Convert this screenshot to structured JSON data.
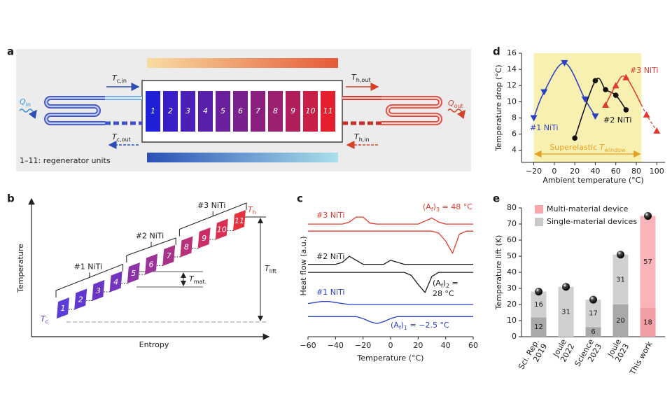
{
  "panel_a": {
    "label": "a",
    "units": [
      "1",
      "2",
      "3",
      "4",
      "5",
      "6",
      "7",
      "8",
      "9",
      "10",
      "11"
    ],
    "unit_colors": [
      "#2020d8",
      "#3a1fc8",
      "#4a1fb8",
      "#5a1faa",
      "#6a1f9c",
      "#7a1f8e",
      "#8a1f80",
      "#9c1f70",
      "#b01f5c",
      "#c81f46",
      "#e4202e"
    ],
    "q_in": [
      "Q",
      {
        "sub": "in"
      }
    ],
    "q_out": [
      "Q",
      {
        "sub": "out"
      }
    ],
    "t_c_in": [
      "T",
      {
        "sub": "c,in"
      }
    ],
    "t_c_out": [
      "T",
      {
        "sub": "c,out"
      }
    ],
    "t_h_out": [
      "T",
      {
        "sub": "h,out"
      }
    ],
    "t_h_in": [
      "T",
      {
        "sub": "h,in"
      }
    ],
    "note": "1–11: regenerator units"
  },
  "panel_b": {
    "label": "b",
    "ylabel": "Temperature",
    "xlabel": "Entropy",
    "groups": [
      "#1 NiTi",
      "#2 NiTi",
      "#3 NiTi"
    ],
    "units": [
      "1",
      "2",
      "3",
      "4",
      "5",
      "6",
      "7",
      "8",
      "9",
      "10",
      "11"
    ],
    "unit_colors": [
      "#5a3cd8",
      "#6138cf",
      "#6a35c6",
      "#7333bd",
      "#8a34a8",
      "#9b3398",
      "#a83289",
      "#b8307a",
      "#c92f66",
      "#d82f52",
      "#e8303a"
    ],
    "t_c": [
      "T",
      {
        "sub": "c"
      }
    ],
    "t_h": [
      "T",
      {
        "sub": "h"
      }
    ],
    "t_lift": [
      "T",
      {
        "sub": "lift"
      }
    ],
    "t_mat": [
      "T",
      {
        "sub": "mat."
      }
    ]
  },
  "chart_data": [
    {
      "label": "c",
      "type": "line",
      "xlabel": "Temperature (°C)",
      "ylabel": "Heat flow (a.u.)",
      "xlim": [
        -60,
        60
      ],
      "xticks": [
        {
          "value": -60,
          "label": "−60"
        },
        {
          "value": -40,
          "label": "−40"
        },
        {
          "value": -20,
          "label": "−20"
        },
        0,
        20,
        40,
        60
      ],
      "ylim": [
        0,
        12.6
      ],
      "x": [
        -60,
        -55,
        -50,
        -45,
        -40,
        -35,
        -30,
        -25,
        -20,
        -15,
        -10,
        -5,
        0,
        5,
        10,
        15,
        20,
        25,
        30,
        35,
        40,
        45,
        50,
        55,
        60
      ],
      "series": [
        {
          "name": "#3 NiTi",
          "color": "#e03a2f",
          "curves": [
            [
              11.2,
              11.2,
              11.2,
              11.2,
              11.2,
              11.2,
              11.4,
              11.9,
              11.9,
              11.3,
              11.2,
              11.2,
              11.2,
              11.2,
              11.2,
              11.2,
              11.2,
              11.5,
              11.8,
              11.4,
              11.2,
              11.2,
              11.2,
              11.2,
              11.2
            ],
            [
              10.5,
              10.5,
              10.5,
              10.5,
              10.5,
              10.5,
              10.5,
              10.5,
              10.5,
              10.5,
              10.5,
              10.5,
              10.5,
              10.5,
              10.5,
              10.5,
              10.5,
              10.5,
              10.5,
              10.3,
              9.5,
              8.3,
              10.2,
              10.5,
              10.5
            ]
          ],
          "annotation": [
            [
              "(A",
              {
                "sub": "f"
              },
              ")",
              {
                "sub": "3"
              },
              " = 48 °C"
            ]
          ]
        },
        {
          "name": "#2 NiTi",
          "color": "#1a1a1a",
          "curves": [
            [
              7.2,
              7.2,
              7.2,
              7.2,
              7.2,
              7.4,
              8.0,
              7.6,
              7.2,
              7.2,
              7.2,
              7.2,
              7.6,
              7.4,
              7.2,
              7.2,
              7.2,
              7.2,
              7.2,
              7.2,
              7.2,
              7.2,
              7.2,
              7.2,
              7.2
            ],
            [
              6.4,
              6.4,
              6.4,
              6.4,
              6.4,
              6.4,
              6.4,
              6.4,
              6.4,
              6.4,
              6.4,
              6.4,
              6.4,
              6.4,
              6.4,
              6.1,
              5.2,
              4.4,
              6.0,
              6.4,
              6.4,
              6.4,
              6.4,
              6.4,
              6.4
            ]
          ],
          "annotation": [
            [
              "(A",
              {
                "sub": "f"
              },
              ")",
              {
                "sub": "2"
              },
              " ="
            ],
            [
              "28 °C"
            ]
          ]
        },
        {
          "name": "#1 NiTi",
          "color": "#2b3fc4",
          "curves": [
            [
              3.3,
              3.4,
              3.5,
              3.5,
              3.4,
              3.3,
              3.2,
              3.2,
              3.2,
              3.2,
              3.2,
              3.2,
              3.2,
              3.2,
              3.2,
              3.2,
              3.2,
              3.2,
              3.2,
              3.2,
              3.2,
              3.2,
              3.2,
              3.2,
              3.2
            ],
            [
              2.0,
              2.0,
              2.0,
              2.0,
              2.0,
              2.0,
              2.0,
              2.0,
              1.8,
              1.5,
              1.3,
              1.5,
              1.8,
              2.0,
              2.0,
              2.0,
              2.0,
              2.0,
              2.0,
              2.0,
              2.0,
              2.0,
              2.0,
              2.0,
              2.0
            ]
          ],
          "annotation": [
            [
              "(A",
              {
                "sub": "f"
              },
              ")",
              {
                "sub": "1"
              },
              " = −2.5 °C"
            ]
          ]
        }
      ]
    },
    {
      "label": "d",
      "type": "scatter",
      "xlabel": "Ambient temperature (°C)",
      "ylabel": "Temperature drop (°C)",
      "xlim": [
        -32,
        108
      ],
      "xticks": [
        {
          "value": -20,
          "label": "−20"
        },
        0,
        20,
        40,
        60,
        80,
        100
      ],
      "ylim": [
        2.5,
        16
      ],
      "yticks": [
        4,
        6,
        8,
        10,
        12,
        14,
        16
      ],
      "window": [
        -20,
        85
      ],
      "window_color": "#f8f0b0",
      "window_label_color": "#e8a020",
      "window_label": [
        "Superelastic ",
        "T",
        {
          "sub": "window"
        }
      ],
      "series": [
        {
          "name": "#1 NiTi",
          "color": "#2b3fc4",
          "marker": "triangle-down",
          "x": [
            -20,
            -10,
            10,
            30,
            40
          ],
          "values": [
            8,
            11.2,
            14.8,
            10.3,
            8.2
          ]
        },
        {
          "name": "#2 NiTi",
          "color": "#111111",
          "marker": "circle",
          "x": [
            20,
            40,
            50,
            60,
            70
          ],
          "values": [
            5.5,
            12.6,
            11.5,
            10.8,
            9
          ]
        },
        {
          "name": "#3 NiTi",
          "color": "#e03a2f",
          "marker": "triangle-up",
          "x": [
            50,
            60,
            70,
            90,
            100
          ],
          "values": [
            9.6,
            12,
            13,
            8.4,
            6.4
          ]
        }
      ]
    },
    {
      "label": "e",
      "type": "stacked-bar",
      "ylabel": "Temperature lift (K)",
      "categories": [
        "Sci. Rep.\n2019",
        "Joule\n2022",
        "Science\n2023",
        "Joule\n2023",
        "This work"
      ],
      "ylim": [
        0,
        80
      ],
      "yticks": [
        0,
        10,
        20,
        30,
        40,
        50,
        60,
        70,
        80
      ],
      "series": [
        {
          "values": [
            12,
            null,
            6,
            20,
            18
          ],
          "colors": [
            "#a9a9a9",
            "#a9a9a9",
            "#a9a9a9",
            "#a9a9a9",
            "#f19ea4"
          ]
        },
        {
          "values": [
            16,
            31,
            17,
            31,
            57
          ],
          "colors": [
            "#d0d0d0",
            "#d0d0d0",
            "#d0d0d0",
            "#d0d0d0",
            "#f8b4b8"
          ]
        }
      ],
      "legend": [
        {
          "name": "Multi-material device",
          "color": "#f6a7ab"
        },
        {
          "name": "Single-material devices",
          "color": "#c9c9c9"
        }
      ]
    }
  ]
}
